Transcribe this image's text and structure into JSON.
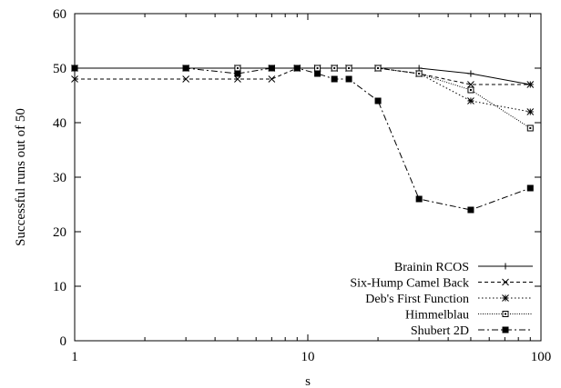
{
  "chart_data": {
    "type": "line",
    "title": "",
    "xlabel": "s",
    "ylabel": "Successful runs out of 50",
    "x_scale": "log",
    "xlim": [
      1,
      100
    ],
    "ylim": [
      0,
      60
    ],
    "x_ticks": [
      {
        "value": 1,
        "label": "1"
      },
      {
        "value": 10,
        "label": "10"
      },
      {
        "value": 100,
        "label": "100"
      }
    ],
    "y_ticks": [
      {
        "value": 0,
        "label": "0"
      },
      {
        "value": 10,
        "label": "10"
      },
      {
        "value": 20,
        "label": "20"
      },
      {
        "value": 30,
        "label": "30"
      },
      {
        "value": 40,
        "label": "40"
      },
      {
        "value": 50,
        "label": "50"
      },
      {
        "value": 60,
        "label": "60"
      }
    ],
    "grid": false,
    "legend_position": "bottom-right",
    "series": [
      {
        "name": "Brainin RCOS",
        "marker": "plus",
        "dash": "solid",
        "points": [
          [
            1,
            50
          ],
          [
            3,
            50
          ],
          [
            5,
            50
          ],
          [
            7,
            50
          ],
          [
            9,
            50
          ],
          [
            11,
            50
          ],
          [
            13,
            50
          ],
          [
            15,
            50
          ],
          [
            20,
            50
          ],
          [
            30,
            50
          ],
          [
            50,
            49
          ],
          [
            90,
            47
          ]
        ]
      },
      {
        "name": "Six-Hump Camel Back",
        "marker": "cross",
        "dash": "dashed",
        "points": [
          [
            1,
            48
          ],
          [
            3,
            48
          ],
          [
            5,
            48
          ],
          [
            7,
            48
          ],
          [
            9,
            50
          ],
          [
            11,
            50
          ],
          [
            13,
            50
          ],
          [
            15,
            50
          ],
          [
            20,
            50
          ],
          [
            30,
            49
          ],
          [
            50,
            47
          ],
          [
            90,
            47
          ]
        ]
      },
      {
        "name": "Deb's First Function",
        "marker": "asterisk",
        "dash": "dotted",
        "points": [
          [
            1,
            50
          ],
          [
            3,
            50
          ],
          [
            5,
            50
          ],
          [
            7,
            50
          ],
          [
            9,
            50
          ],
          [
            11,
            50
          ],
          [
            13,
            50
          ],
          [
            15,
            50
          ],
          [
            20,
            50
          ],
          [
            30,
            49
          ],
          [
            50,
            44
          ],
          [
            90,
            42
          ]
        ]
      },
      {
        "name": "Himmelblau",
        "marker": "open-square",
        "dash": "fine-dotted",
        "points": [
          [
            1,
            50
          ],
          [
            3,
            50
          ],
          [
            5,
            50
          ],
          [
            7,
            50
          ],
          [
            9,
            50
          ],
          [
            11,
            50
          ],
          [
            13,
            50
          ],
          [
            15,
            50
          ],
          [
            20,
            50
          ],
          [
            30,
            49
          ],
          [
            50,
            46
          ],
          [
            90,
            39
          ]
        ]
      },
      {
        "name": "Shubert 2D",
        "marker": "filled-square",
        "dash": "dash-dot",
        "points": [
          [
            1,
            50
          ],
          [
            3,
            50
          ],
          [
            5,
            49
          ],
          [
            7,
            50
          ],
          [
            9,
            50
          ],
          [
            11,
            49
          ],
          [
            13,
            48
          ],
          [
            15,
            48
          ],
          [
            20,
            44
          ],
          [
            30,
            26
          ],
          [
            50,
            24
          ],
          [
            90,
            28
          ]
        ]
      }
    ]
  }
}
